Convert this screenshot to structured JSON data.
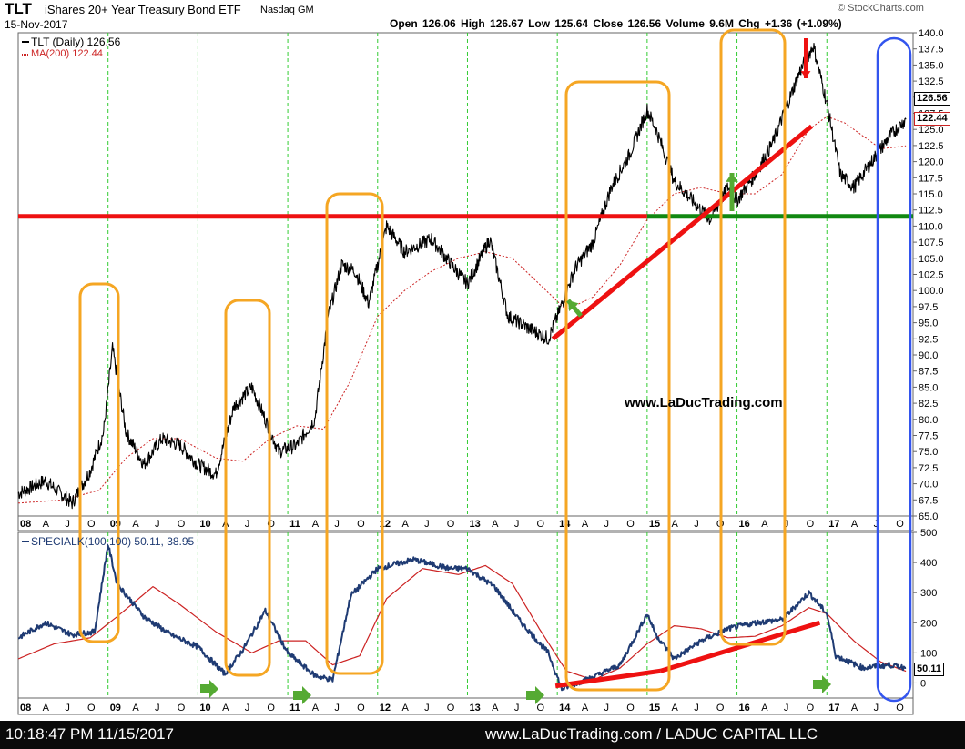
{
  "header": {
    "ticker": "TLT",
    "name": "iShares 20+ Year Treasury Bond ETF",
    "exchange": "Nasdaq GM",
    "date": "15-Nov-2017",
    "brand": "© StockCharts.com",
    "quote": "Open 126.06  High 126.67  Low 125.64  Close 126.56  Volume 9.6M  Chg +1.36 (+1.09%)"
  },
  "footer": {
    "timestamp": "10:18:47 PM 11/15/2017",
    "credit": "www.LaDucTrading.com / LADUC CAPITAL LLC"
  },
  "chart_data": [
    {
      "type": "line",
      "panel": "price",
      "legend": [
        {
          "label": "TLT (Daily) 126.56",
          "color": "#000000",
          "style": "solid"
        },
        {
          "label": "MA(200) 122.44",
          "color": "#cc2222",
          "style": "dotted"
        }
      ],
      "watermark": "www.LaDucTrading.com",
      "ylim": [
        65,
        140
      ],
      "y_ticks": [
        65.0,
        67.5,
        70.0,
        72.5,
        75.0,
        77.5,
        80.0,
        82.5,
        85.0,
        87.5,
        90.0,
        92.5,
        95.0,
        97.5,
        100.0,
        102.5,
        105.0,
        107.5,
        110.0,
        112.5,
        115.0,
        117.5,
        120.0,
        122.5,
        125.0,
        127.5,
        130.0,
        132.5,
        135.0,
        137.5,
        140.0
      ],
      "last_values": {
        "close": "126.56",
        "ma200": "122.44"
      },
      "x_axis_labels": [
        "08",
        "A",
        "J",
        "O",
        "09",
        "A",
        "J",
        "O",
        "10",
        "A",
        "J",
        "O",
        "11",
        "A",
        "J",
        "O",
        "12",
        "A",
        "J",
        "O",
        "13",
        "A",
        "J",
        "O",
        "14",
        "A",
        "J",
        "O",
        "15",
        "A",
        "J",
        "O",
        "16",
        "A",
        "J",
        "O",
        "17",
        "A",
        "J",
        "O"
      ],
      "year_labels": [
        "08",
        "09",
        "10",
        "11",
        "12",
        "13",
        "14",
        "15",
        "16",
        "17"
      ],
      "series": [
        {
          "name": "TLT (Daily)",
          "color": "#000000",
          "x": [
            2008.0,
            2008.3,
            2008.6,
            2008.8,
            2008.95,
            2009.05,
            2009.2,
            2009.4,
            2009.6,
            2009.8,
            2010.0,
            2010.2,
            2010.4,
            2010.6,
            2010.75,
            2010.9,
            2011.1,
            2011.3,
            2011.45,
            2011.6,
            2011.75,
            2011.9,
            2012.1,
            2012.3,
            2012.6,
            2012.85,
            2013.0,
            2013.25,
            2013.45,
            2013.7,
            2013.9,
            2014.0,
            2014.2,
            2014.4,
            2014.6,
            2014.8,
            2015.0,
            2015.1,
            2015.3,
            2015.5,
            2015.7,
            2015.9,
            2016.0,
            2016.2,
            2016.4,
            2016.55,
            2016.7,
            2016.85,
            2017.0,
            2017.15,
            2017.3,
            2017.5,
            2017.7,
            2017.88
          ],
          "values": [
            68.5,
            70.5,
            67.0,
            72.0,
            78.0,
            91.0,
            78.0,
            73.0,
            77.0,
            76.0,
            73.0,
            71.5,
            82.0,
            85.0,
            80.0,
            75.0,
            76.0,
            80.0,
            96.0,
            104.0,
            103.0,
            98.0,
            110.0,
            106.0,
            108.0,
            103.5,
            101.0,
            108.0,
            96.0,
            94.0,
            92.5,
            96.0,
            103.5,
            107.5,
            116.0,
            121.0,
            128.0,
            125.0,
            117.0,
            114.0,
            111.0,
            116.0,
            114.0,
            118.0,
            123.0,
            128.5,
            134.0,
            138.0,
            129.0,
            118.0,
            116.0,
            120.0,
            124.0,
            126.56
          ]
        },
        {
          "name": "MA(200)",
          "color": "#cc2222",
          "x": [
            2008.0,
            2008.5,
            2008.9,
            2009.2,
            2009.5,
            2009.8,
            2010.2,
            2010.5,
            2010.8,
            2011.1,
            2011.4,
            2011.7,
            2012.0,
            2012.3,
            2012.6,
            2012.9,
            2013.2,
            2013.5,
            2013.8,
            2014.1,
            2014.4,
            2014.7,
            2015.0,
            2015.3,
            2015.6,
            2015.9,
            2016.2,
            2016.5,
            2016.8,
            2017.0,
            2017.2,
            2017.4,
            2017.6,
            2017.88
          ],
          "values": [
            67.0,
            67.5,
            69.0,
            74.0,
            77.0,
            77.0,
            74.0,
            73.5,
            77.0,
            79.0,
            78.5,
            86.0,
            96.0,
            100.0,
            103.0,
            105.0,
            106.0,
            105.0,
            101.0,
            97.0,
            99.0,
            104.0,
            111.0,
            115.0,
            116.0,
            115.0,
            115.0,
            118.0,
            125.0,
            127.0,
            126.0,
            124.0,
            122.0,
            122.44
          ]
        }
      ]
    },
    {
      "type": "line",
      "panel": "indicator",
      "legend": [
        {
          "label": "SPECIALK(100,100) 50.11, 38.95",
          "color": "#1f3b73",
          "style": "solid"
        }
      ],
      "ylim": [
        -50,
        500
      ],
      "y_ticks": [
        0,
        100,
        200,
        300,
        400,
        500
      ],
      "last_values": {
        "specialk": "50.11",
        "signal": "38.95"
      },
      "series": [
        {
          "name": "SPECIALK(100,100)",
          "color": "#1f3b73",
          "x": [
            2008.0,
            2008.3,
            2008.6,
            2008.85,
            2009.0,
            2009.1,
            2009.4,
            2009.7,
            2010.0,
            2010.3,
            2010.5,
            2010.75,
            2011.0,
            2011.3,
            2011.5,
            2011.7,
            2012.0,
            2012.4,
            2012.8,
            2013.0,
            2013.3,
            2013.6,
            2013.9,
            2014.05,
            2014.4,
            2014.7,
            2015.0,
            2015.1,
            2015.3,
            2015.6,
            2015.9,
            2016.2,
            2016.5,
            2016.8,
            2017.0,
            2017.1,
            2017.4,
            2017.7,
            2017.88
          ],
          "values": [
            150,
            200,
            160,
            170,
            460,
            330,
            220,
            160,
            120,
            30,
            110,
            240,
            100,
            25,
            10,
            290,
            380,
            410,
            380,
            380,
            320,
            200,
            100,
            -20,
            20,
            60,
            230,
            160,
            80,
            140,
            180,
            200,
            210,
            300,
            230,
            90,
            50,
            60,
            50.11
          ]
        },
        {
          "name": "Signal",
          "color": "#cc2222",
          "x": [
            2008.0,
            2008.4,
            2008.8,
            2009.1,
            2009.5,
            2009.8,
            2010.2,
            2010.6,
            2010.9,
            2011.2,
            2011.5,
            2011.8,
            2012.1,
            2012.5,
            2012.9,
            2013.2,
            2013.5,
            2013.8,
            2014.1,
            2014.4,
            2014.7,
            2015.0,
            2015.3,
            2015.6,
            2015.9,
            2016.2,
            2016.5,
            2016.8,
            2017.0,
            2017.3,
            2017.6,
            2017.88
          ],
          "values": [
            80,
            130,
            150,
            220,
            320,
            260,
            170,
            100,
            140,
            140,
            60,
            90,
            280,
            380,
            360,
            390,
            330,
            180,
            40,
            10,
            50,
            130,
            190,
            180,
            150,
            155,
            190,
            250,
            230,
            140,
            70,
            38.95
          ]
        }
      ]
    }
  ]
}
